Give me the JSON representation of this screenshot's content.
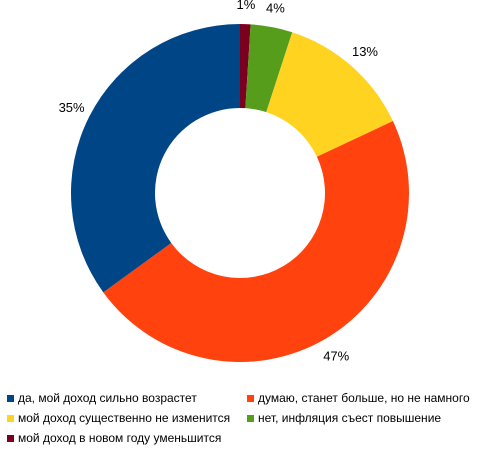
{
  "chart_data": {
    "type": "pie",
    "style": "donut",
    "legend_position": "bottom",
    "slices": [
      {
        "label": "мой доход в новом году уменьшится",
        "value": 1,
        "display": "1%",
        "color": "#7b0020"
      },
      {
        "label": "нет, инфляция съест повышение",
        "value": 4,
        "display": "4%",
        "color": "#579d1c"
      },
      {
        "label": "мой доход существенно не изменится",
        "value": 13,
        "display": "13%",
        "color": "#ffd320"
      },
      {
        "label": "думаю, станет больше, но не намного",
        "value": 47,
        "display": "47%",
        "color": "#ff420e"
      },
      {
        "label": "да, мой доход сильно возрастет",
        "value": 35,
        "display": "35%",
        "color": "#004586"
      }
    ],
    "legend": [
      {
        "label": "да, мой доход сильно возрастет",
        "color": "#004586"
      },
      {
        "label": "думаю, станет больше, но не намного",
        "color": "#ff420e"
      },
      {
        "label": "мой доход существенно не изменится",
        "color": "#ffd320"
      },
      {
        "label": "нет, инфляция съест повышение",
        "color": "#579d1c"
      },
      {
        "label": "мой доход в новом году уменьшится",
        "color": "#7b0020"
      }
    ]
  }
}
